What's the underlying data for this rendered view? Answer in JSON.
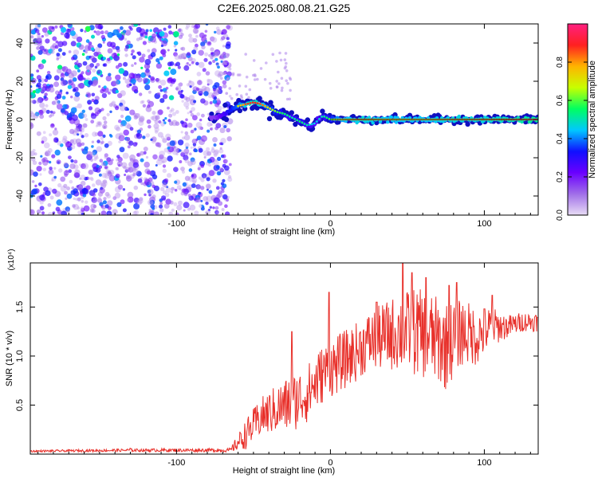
{
  "title": "C2E6.2025.080.08.21.G25",
  "chart_data": [
    {
      "type": "heatmap",
      "title": "C2E6.2025.080.08.21.G25",
      "xlabel": "Height of straight line (km)",
      "ylabel": "Frequency (Hz)",
      "xlim": [
        -195,
        135
      ],
      "ylim": [
        -50,
        50
      ],
      "x_ticks": [
        -100,
        0,
        100
      ],
      "y_ticks": [
        -40,
        -20,
        0,
        20,
        40
      ],
      "colorbar": {
        "label": "Normalized spectral amplitude",
        "range": [
          0,
          1
        ],
        "ticks": [
          0.0,
          0.2,
          0.4,
          0.6,
          0.8
        ],
        "tick_labels": [
          "0.0",
          "0.2",
          "0.4",
          "0.6",
          "0.8"
        ],
        "colors": [
          "#e8dcf5",
          "#a06ee8",
          "#6a00ff",
          "#1010ff",
          "#00c8ff",
          "#00ff60",
          "#c8ff00",
          "#ffb400",
          "#ff2020",
          "#ff2080"
        ]
      },
      "ridge": {
        "x": [
          -75,
          -70,
          -65,
          -60,
          -55,
          -50,
          -45,
          -40,
          -35,
          -30,
          -25,
          -20,
          -15,
          -10,
          -5,
          0,
          5,
          10,
          20,
          40,
          60,
          80,
          100,
          120,
          135
        ],
        "y": [
          1,
          2,
          5,
          7,
          8,
          9,
          8,
          6,
          4,
          3,
          1,
          -1,
          -3,
          -2,
          2,
          0,
          0,
          0,
          0,
          0,
          0,
          0,
          0,
          0,
          0
        ],
        "amplitude": [
          0.3,
          0.45,
          0.6,
          0.7,
          0.85,
          0.9,
          0.85,
          0.7,
          0.6,
          0.55,
          0.5,
          0.55,
          0.5,
          0.45,
          0.5,
          0.6,
          0.75,
          0.8,
          0.85,
          0.8,
          0.8,
          0.85,
          0.85,
          0.9,
          0.95
        ]
      },
      "noise_region": {
        "x_range": [
          -195,
          -65
        ],
        "y_range": [
          -50,
          50
        ],
        "amplitude_range": [
          0.05,
          0.35
        ]
      }
    },
    {
      "type": "line",
      "xlabel": "Height of straight line (km)",
      "ylabel": "SNR (10 * v/v)",
      "y_multiplier": "(x10⁴)",
      "xlim": [
        -195,
        135
      ],
      "ylim": [
        0,
        1.95
      ],
      "x_ticks": [
        -100,
        0,
        100
      ],
      "y_ticks": [
        0.5,
        1.0,
        1.5
      ],
      "y_tick_labels": [
        "0.5",
        "1.0",
        "1.5"
      ],
      "color": "#e8302a",
      "envelope": {
        "x": [
          -195,
          -130,
          -65,
          -55,
          -45,
          -35,
          -25,
          -15,
          -5,
          5,
          15,
          25,
          35,
          45,
          55,
          65,
          75,
          85,
          95,
          105,
          115,
          125,
          135
        ],
        "mean": [
          0.03,
          0.04,
          0.04,
          0.2,
          0.38,
          0.46,
          0.52,
          0.62,
          0.82,
          0.92,
          1.02,
          1.15,
          1.2,
          1.25,
          1.25,
          1.2,
          1.1,
          1.25,
          1.2,
          1.3,
          1.3,
          1.35,
          1.35
        ],
        "spread": [
          0.01,
          0.015,
          0.02,
          0.15,
          0.2,
          0.25,
          0.3,
          0.3,
          0.3,
          0.3,
          0.3,
          0.3,
          0.35,
          0.4,
          0.45,
          0.45,
          0.45,
          0.35,
          0.3,
          0.2,
          0.12,
          0.1,
          0.1
        ]
      },
      "peaks": {
        "x": [
          -130,
          -25,
          -1,
          30,
          47,
          53,
          62,
          77,
          82,
          100,
          105
        ],
        "y": [
          0.06,
          1.25,
          1.65,
          1.55,
          1.95,
          1.85,
          1.8,
          1.72,
          1.75,
          1.48,
          1.62
        ]
      }
    }
  ]
}
